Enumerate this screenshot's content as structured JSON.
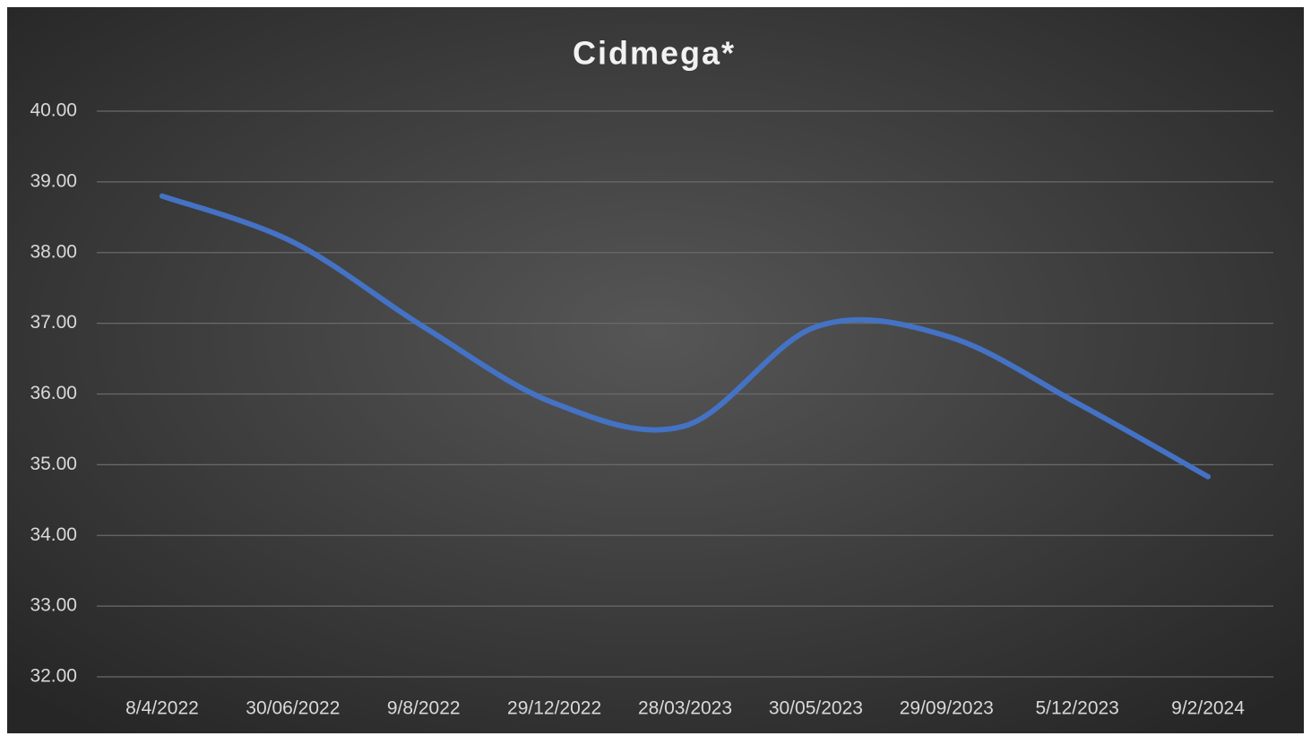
{
  "chart_data": {
    "type": "line",
    "title": "Cidmega*",
    "categories": [
      "8/4/2022",
      "30/06/2022",
      "9/8/2022",
      "29/12/2022",
      "28/03/2023",
      "30/05/2023",
      "29/09/2023",
      "5/12/2023",
      "9/2/2024"
    ],
    "series": [
      {
        "name": "Cidmega*",
        "color": "#4472c4",
        "values": [
          38.8,
          38.15,
          36.95,
          35.87,
          35.55,
          36.95,
          36.82,
          35.87,
          34.83
        ]
      }
    ],
    "ylim": [
      32,
      40
    ],
    "yticks": [
      {
        "value": 32,
        "label": "32.00"
      },
      {
        "value": 33,
        "label": "33.00"
      },
      {
        "value": 34,
        "label": "34.00"
      },
      {
        "value": 35,
        "label": "35.00"
      },
      {
        "value": 36,
        "label": "36.00"
      },
      {
        "value": 37,
        "label": "37.00"
      },
      {
        "value": 38,
        "label": "38.00"
      },
      {
        "value": 39,
        "label": "39.00"
      },
      {
        "value": 40,
        "label": "40.00"
      }
    ],
    "grid": true,
    "smooth": true
  }
}
